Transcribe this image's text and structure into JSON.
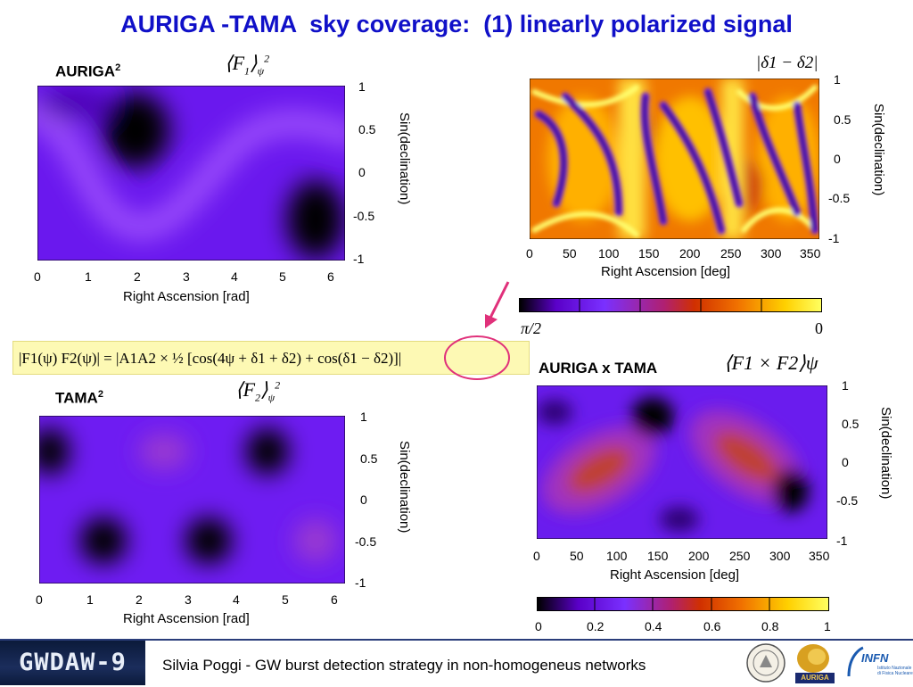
{
  "title": "AURIGA -TAMA  sky coverage:  (1) linearly polarized signal",
  "panels": {
    "auriga": {
      "label": "AURIGA",
      "exp": "2",
      "math_base": "F",
      "math_sub": "1",
      "math_sub2": "ψ",
      "math_exp": "2",
      "xlabel": "Right Ascension [rad]",
      "ylabel": "Sin(declination)",
      "xticks": [
        "0",
        "1",
        "2",
        "3",
        "4",
        "5",
        "6"
      ],
      "yticks": [
        "1",
        "0.5",
        "0",
        "-0.5",
        "-1"
      ]
    },
    "tama": {
      "label": "TAMA",
      "exp": "2",
      "math_base": "F",
      "math_sub": "2",
      "math_sub2": "ψ",
      "math_exp": "2",
      "xlabel": "Right Ascension [rad]",
      "ylabel": "Sin(declination)",
      "xticks": [
        "0",
        "1",
        "2",
        "3",
        "4",
        "5",
        "6"
      ],
      "yticks": [
        "1",
        "0.5",
        "0",
        "-0.5",
        "-1"
      ]
    },
    "phase": {
      "math": "|δ1 − δ2|",
      "xlabel": "Right Ascension [deg]",
      "ylabel": "Sin(declination)",
      "xticks": [
        "0",
        "50",
        "100",
        "150",
        "200",
        "250",
        "300",
        "350"
      ],
      "yticks": [
        "1",
        "0.5",
        "0",
        "-0.5",
        "-1"
      ],
      "colorbar_left": "π/2",
      "colorbar_right": "0"
    },
    "product": {
      "label": "AURIGA x TAMA",
      "math": "⟨F1 × F2⟩ψ",
      "xlabel": "Right Ascension [deg]",
      "ylabel": "Sin(declination)",
      "xticks": [
        "0",
        "50",
        "100",
        "150",
        "200",
        "250",
        "300",
        "350"
      ],
      "yticks": [
        "1",
        "0.5",
        "0",
        "-0.5",
        "-1"
      ],
      "colorbar_ticks": [
        "0",
        "0.2",
        "0.4",
        "0.6",
        "0.8",
        "1"
      ]
    }
  },
  "formula": "|F1(ψ) F2(ψ)| = |A1A2 × ½ [cos(4ψ + δ1 + δ2) + cos(δ1 − δ2)]|",
  "footer": {
    "conference": "GWDAW-9",
    "text": "Silvia Poggi - GW burst detection strategy in non-homogeneus networks",
    "logos": [
      "AURIGA",
      "INFN",
      "Istituto Nazionale di Fisica Nucleare"
    ]
  },
  "colors": {
    "title": "#1010c8",
    "annotation": "#e0307a",
    "formula_bg": "#fdf9b4",
    "colormap": [
      "#000000",
      "#5a00c8",
      "#7a30ff",
      "#c02030",
      "#f07000",
      "#ffd000",
      "#ffff60"
    ]
  }
}
